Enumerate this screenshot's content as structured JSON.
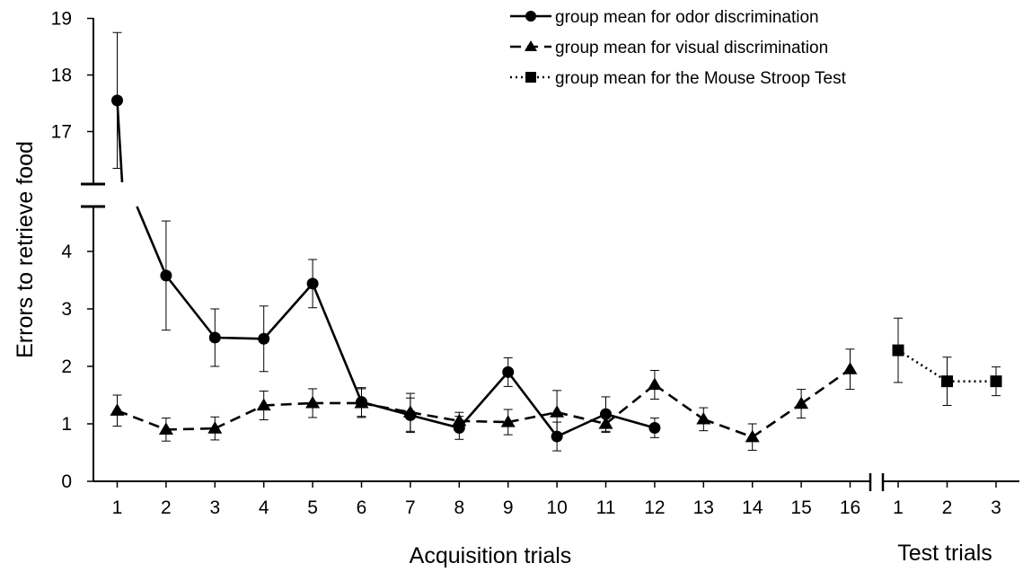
{
  "chart_data": {
    "type": "line",
    "ylabel": "Errors to retrieve food",
    "xlabel_acquisition": "Acquisition trials",
    "xlabel_test": "Test trials",
    "y_ticks_lower": [
      "0",
      "1",
      "2",
      "3",
      "4"
    ],
    "y_ticks_upper": [
      "17",
      "18",
      "19"
    ],
    "ylim_lower": [
      0,
      4.8
    ],
    "ylim_upper": [
      16.2,
      19
    ],
    "acquisition_categories": [
      "1",
      "2",
      "3",
      "4",
      "5",
      "6",
      "7",
      "8",
      "9",
      "10",
      "11",
      "12",
      "13",
      "14",
      "15",
      "16"
    ],
    "test_categories": [
      "1",
      "2",
      "3"
    ],
    "series": [
      {
        "name": "group mean for odor discrimination",
        "style": "solid",
        "marker": "circle",
        "phase": "acquisition",
        "x": [
          1,
          2,
          3,
          4,
          5,
          6,
          7,
          8,
          9,
          10,
          11,
          12
        ],
        "values": [
          17.55,
          3.58,
          2.5,
          2.48,
          3.44,
          1.38,
          1.15,
          0.93,
          1.9,
          0.78,
          1.17,
          0.93
        ],
        "err": [
          1.2,
          0.95,
          0.5,
          0.57,
          0.42,
          0.25,
          0.3,
          0.2,
          0.25,
          0.25,
          0.3,
          0.17
        ]
      },
      {
        "name": "group mean for visual discrimination",
        "style": "dashed",
        "marker": "triangle",
        "phase": "acquisition",
        "x": [
          1,
          2,
          3,
          4,
          5,
          6,
          7,
          8,
          9,
          10,
          11,
          12,
          13,
          14,
          15,
          16
        ],
        "values": [
          1.23,
          0.9,
          0.92,
          1.32,
          1.36,
          1.36,
          1.2,
          1.05,
          1.03,
          1.2,
          1.0,
          1.68,
          1.08,
          0.77,
          1.35,
          1.95
        ],
        "err": [
          0.27,
          0.2,
          0.2,
          0.25,
          0.25,
          0.25,
          0.33,
          0.15,
          0.22,
          0.38,
          0.15,
          0.25,
          0.2,
          0.23,
          0.25,
          0.35
        ]
      },
      {
        "name": "group mean for the Mouse Stroop Test",
        "style": "dotted",
        "marker": "square",
        "phase": "test",
        "x": [
          1,
          2,
          3
        ],
        "values": [
          2.28,
          1.74,
          1.74
        ],
        "err": [
          0.56,
          0.42,
          0.25
        ]
      }
    ]
  }
}
